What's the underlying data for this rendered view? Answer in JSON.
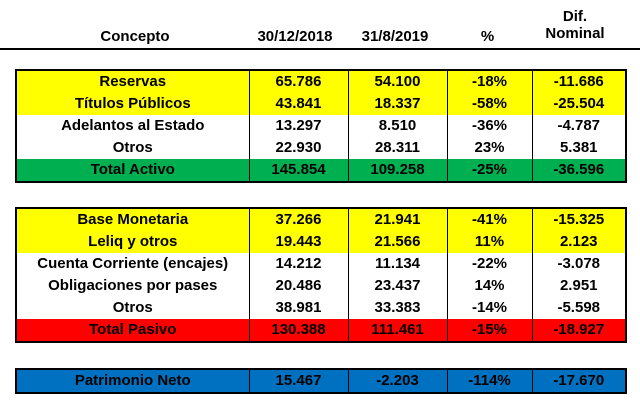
{
  "header": {
    "concepto": "Concepto",
    "col1": "30/12/2018",
    "col2": "31/8/2019",
    "col3": "%",
    "col4_line1": "Dif.",
    "col4_line2": "Nominal"
  },
  "activo": [
    {
      "label": "Reservas",
      "v1": "65.786",
      "v2": "54.100",
      "pct": "-18%",
      "dif": "-11.686",
      "color": "yellow"
    },
    {
      "label": "Títulos Públicos",
      "v1": "43.841",
      "v2": "18.337",
      "pct": "-58%",
      "dif": "-25.504",
      "color": "yellow"
    },
    {
      "label": "Adelantos al Estado",
      "v1": "13.297",
      "v2": "8.510",
      "pct": "-36%",
      "dif": "-4.787",
      "color": "white"
    },
    {
      "label": "Otros",
      "v1": "22.930",
      "v2": "28.311",
      "pct": "23%",
      "dif": "5.381",
      "color": "white"
    },
    {
      "label": "Total Activo",
      "v1": "145.854",
      "v2": "109.258",
      "pct": "-25%",
      "dif": "-36.596",
      "color": "green"
    }
  ],
  "pasivo": [
    {
      "label": "Base Monetaria",
      "v1": "37.266",
      "v2": "21.941",
      "pct": "-41%",
      "dif": "-15.325",
      "color": "yellow"
    },
    {
      "label": "Leliq y otros",
      "v1": "19.443",
      "v2": "21.566",
      "pct": "11%",
      "dif": "2.123",
      "color": "yellow"
    },
    {
      "label": "Cuenta Corriente (encajes)",
      "v1": "14.212",
      "v2": "11.134",
      "pct": "-22%",
      "dif": "-3.078",
      "color": "white"
    },
    {
      "label": "Obligaciones por pases",
      "v1": "20.486",
      "v2": "23.437",
      "pct": "14%",
      "dif": "2.951",
      "color": "white"
    },
    {
      "label": "Otros",
      "v1": "38.981",
      "v2": "33.383",
      "pct": "-14%",
      "dif": "-5.598",
      "color": "white"
    },
    {
      "label": "Total Pasivo",
      "v1": "130.388",
      "v2": "111.461",
      "pct": "-15%",
      "dif": "-18.927",
      "color": "red"
    }
  ],
  "patrimonio": [
    {
      "label": "Patrimonio Neto",
      "v1": "15.467",
      "v2": "-2.203",
      "pct": "-114%",
      "dif": "-17.670",
      "color": "blue"
    }
  ],
  "colors": {
    "yellow": "#ffff00",
    "green": "#00b050",
    "red": "#ff0000",
    "blue": "#0070c0",
    "white": "#ffffff"
  }
}
